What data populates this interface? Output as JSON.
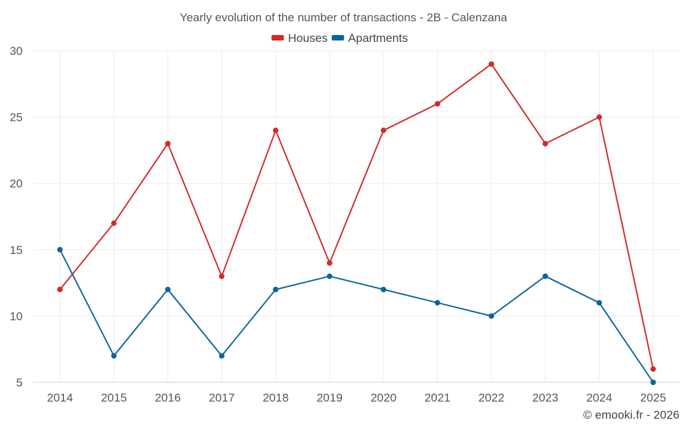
{
  "chart_data": {
    "type": "line",
    "title": "Yearly evolution of the number of transactions - 2B - Calenzana",
    "xlabel": "",
    "ylabel": "",
    "categories": [
      "2014",
      "2015",
      "2016",
      "2017",
      "2018",
      "2019",
      "2020",
      "2021",
      "2022",
      "2023",
      "2024",
      "2025"
    ],
    "ylim": [
      5,
      30
    ],
    "yticks": [
      5,
      10,
      15,
      20,
      25,
      30
    ],
    "grid": true,
    "legend_position": "top-center",
    "series": [
      {
        "name": "Houses",
        "color": "#d32a2a",
        "values": [
          12,
          17,
          23,
          13,
          24,
          14,
          24,
          26,
          29,
          23,
          25,
          6
        ]
      },
      {
        "name": "Apartments",
        "color": "#0b6699",
        "values": [
          15,
          7,
          12,
          7,
          12,
          13,
          12,
          11,
          10,
          13,
          11,
          5
        ]
      }
    ]
  },
  "credit": "© emooki.fr - 2026"
}
